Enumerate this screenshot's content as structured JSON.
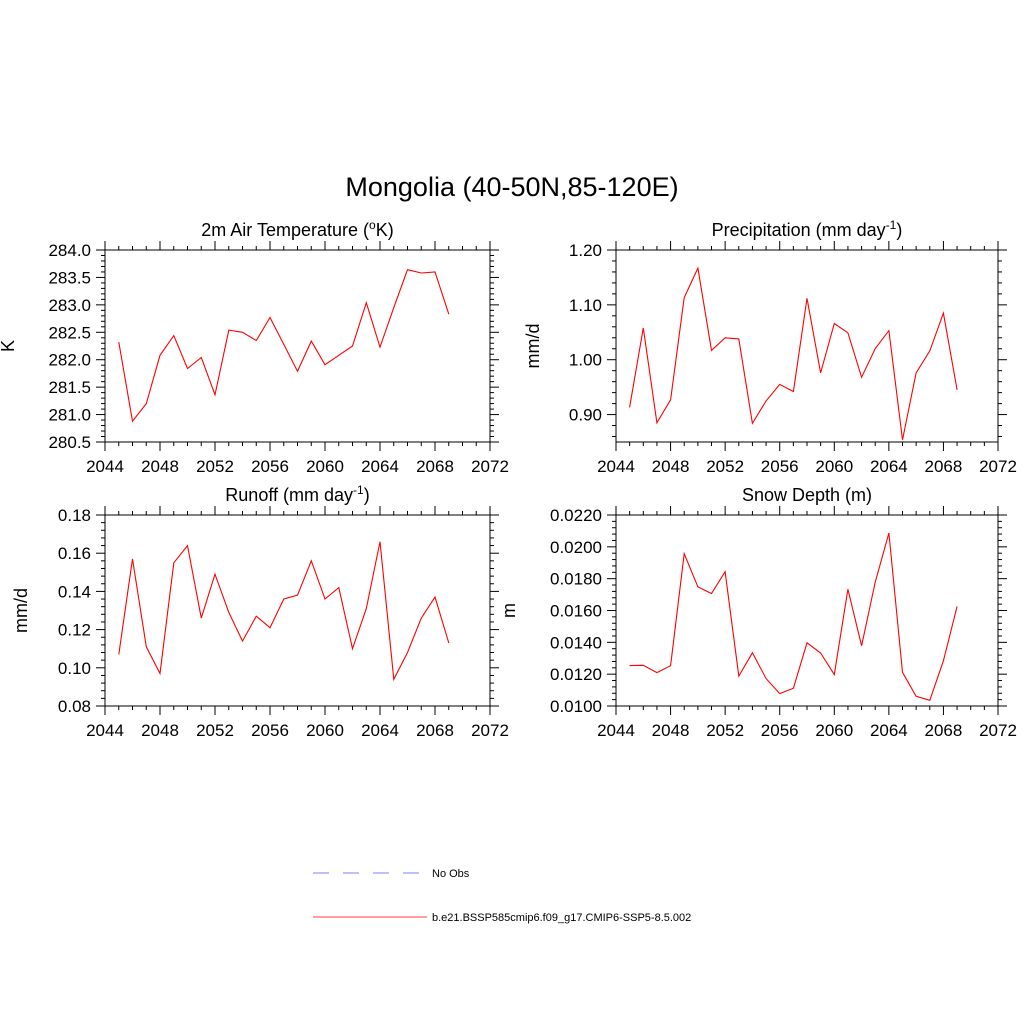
{
  "figure": {
    "title": "Mongolia (40-50N,85-120E)"
  },
  "legend": {
    "items": [
      {
        "label": "No Obs",
        "color": "#9999ff",
        "style": "dashed"
      },
      {
        "label": "b.e21.BSSP585cmip6.f09_g17.CMIP6-SSP5-8.5.002",
        "color": "#ff6666",
        "style": "solid"
      }
    ]
  },
  "chart_data": [
    {
      "type": "line",
      "title": "2m Air Temperature (°K)",
      "ylabel": "K",
      "xlim": [
        2044,
        2072
      ],
      "ylim": [
        280.5,
        284.0
      ],
      "xticks": [
        2044,
        2048,
        2052,
        2056,
        2060,
        2064,
        2068,
        2072
      ],
      "xtick_labels": [
        "2044",
        "2048",
        "2052",
        "2056",
        "2060",
        "2064",
        "2068",
        "2072"
      ],
      "yticks": [
        280.5,
        281.0,
        281.5,
        282.0,
        282.5,
        283.0,
        283.5,
        284.0
      ],
      "ytick_labels": [
        "280.5",
        "281.0",
        "281.5",
        "282.0",
        "282.5",
        "283.0",
        "283.5",
        "284.0"
      ],
      "line_color": "#ff0000",
      "x": [
        2045,
        2046,
        2047,
        2048,
        2049,
        2050,
        2051,
        2052,
        2053,
        2054,
        2055,
        2056,
        2057,
        2058,
        2059,
        2060,
        2061,
        2062,
        2063,
        2064,
        2065,
        2066,
        2067,
        2068,
        2069
      ],
      "values": [
        282.32,
        280.88,
        281.2,
        282.08,
        282.44,
        281.84,
        282.04,
        281.36,
        282.54,
        282.5,
        282.35,
        282.77,
        282.28,
        281.79,
        282.34,
        281.91,
        282.08,
        282.25,
        283.04,
        282.23,
        282.95,
        283.64,
        283.58,
        283.6,
        282.83
      ]
    },
    {
      "type": "line",
      "title": "Precipitation (mm day-1)",
      "ylabel": "mm/d",
      "xlim": [
        2044,
        2072
      ],
      "ylim": [
        0.85,
        1.2
      ],
      "xticks": [
        2044,
        2048,
        2052,
        2056,
        2060,
        2064,
        2068,
        2072
      ],
      "xtick_labels": [
        "2044",
        "2048",
        "2052",
        "2056",
        "2060",
        "2064",
        "2068",
        "2072"
      ],
      "yticks": [
        0.9,
        1.0,
        1.1,
        1.2
      ],
      "ytick_labels": [
        "0.90",
        "1.00",
        "1.10",
        "1.20"
      ],
      "line_color": "#ff0000",
      "x": [
        2045,
        2046,
        2047,
        2048,
        2049,
        2050,
        2051,
        2052,
        2053,
        2054,
        2055,
        2056,
        2057,
        2058,
        2059,
        2060,
        2061,
        2062,
        2063,
        2064,
        2065,
        2066,
        2067,
        2068,
        2069
      ],
      "values": [
        0.913,
        1.058,
        0.885,
        0.927,
        1.113,
        1.167,
        1.017,
        1.04,
        1.038,
        0.884,
        0.925,
        0.955,
        0.942,
        1.112,
        0.976,
        1.066,
        1.049,
        0.968,
        1.02,
        1.053,
        0.854,
        0.976,
        1.016,
        1.085,
        0.945
      ]
    },
    {
      "type": "line",
      "title": "Runoff (mm day-1)",
      "ylabel": "mm/d",
      "xlim": [
        2044,
        2072
      ],
      "ylim": [
        0.08,
        0.18
      ],
      "xticks": [
        2044,
        2048,
        2052,
        2056,
        2060,
        2064,
        2068,
        2072
      ],
      "xtick_labels": [
        "2044",
        "2048",
        "2052",
        "2056",
        "2060",
        "2064",
        "2068",
        "2072"
      ],
      "yticks": [
        0.08,
        0.1,
        0.12,
        0.14,
        0.16,
        0.18
      ],
      "ytick_labels": [
        "0.08",
        "0.10",
        "0.12",
        "0.14",
        "0.16",
        "0.18"
      ],
      "line_color": "#ff0000",
      "x": [
        2045,
        2046,
        2047,
        2048,
        2049,
        2050,
        2051,
        2052,
        2053,
        2054,
        2055,
        2056,
        2057,
        2058,
        2059,
        2060,
        2061,
        2062,
        2063,
        2064,
        2065,
        2066,
        2067,
        2068,
        2069
      ],
      "values": [
        0.107,
        0.157,
        0.111,
        0.097,
        0.155,
        0.164,
        0.126,
        0.149,
        0.129,
        0.114,
        0.127,
        0.121,
        0.136,
        0.138,
        0.156,
        0.136,
        0.142,
        0.11,
        0.131,
        0.166,
        0.094,
        0.108,
        0.126,
        0.137,
        0.113
      ]
    },
    {
      "type": "line",
      "title": "Snow Depth (m)",
      "ylabel": "m",
      "xlim": [
        2044,
        2072
      ],
      "ylim": [
        0.01,
        0.022
      ],
      "xticks": [
        2044,
        2048,
        2052,
        2056,
        2060,
        2064,
        2068,
        2072
      ],
      "xtick_labels": [
        "2044",
        "2048",
        "2052",
        "2056",
        "2060",
        "2064",
        "2068",
        "2072"
      ],
      "yticks": [
        0.01,
        0.012,
        0.014,
        0.016,
        0.018,
        0.02,
        0.022
      ],
      "ytick_labels": [
        "0.0100",
        "0.0120",
        "0.0140",
        "0.0160",
        "0.0180",
        "0.0200",
        "0.0220"
      ],
      "line_color": "#ff0000",
      "x": [
        2045,
        2046,
        2047,
        2048,
        2049,
        2050,
        2051,
        2052,
        2053,
        2054,
        2055,
        2056,
        2057,
        2058,
        2059,
        2060,
        2061,
        2062,
        2063,
        2064,
        2065,
        2066,
        2067,
        2068,
        2069
      ],
      "values": [
        0.01254,
        0.01256,
        0.0121,
        0.01253,
        0.01957,
        0.01748,
        0.01707,
        0.01844,
        0.01188,
        0.01334,
        0.01172,
        0.01078,
        0.01112,
        0.01397,
        0.01333,
        0.01197,
        0.01734,
        0.01378,
        0.01778,
        0.02087,
        0.01212,
        0.01061,
        0.01036,
        0.01284,
        0.01626
      ]
    }
  ]
}
